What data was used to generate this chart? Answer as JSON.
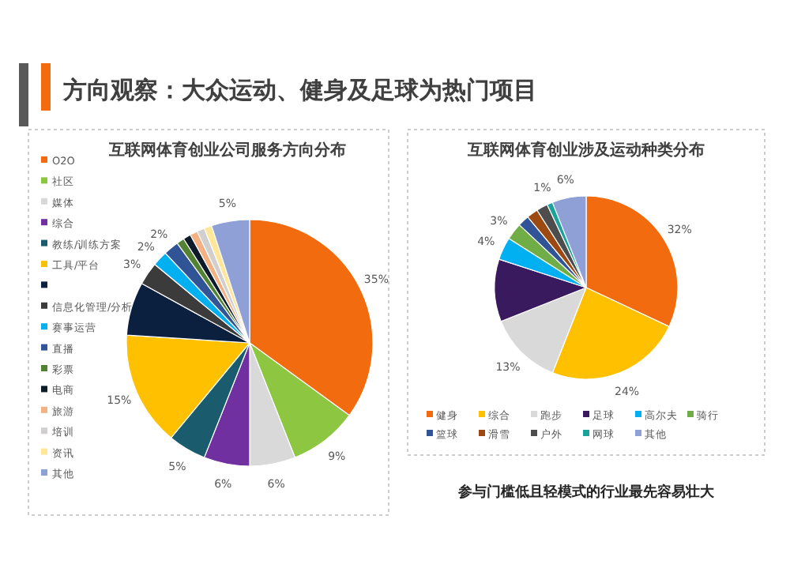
{
  "chart_data": [
    {
      "type": "pie",
      "title": "互联网体育创业公司服务方向分布",
      "annotations": [
        "方向观察：大众运动、健身及足球为热门项目"
      ],
      "legend": "left",
      "categories": [
        "O2O",
        "社区",
        "媒体",
        "综合",
        "教练/训练方案",
        "工具/平台",
        null,
        "信息化管理/分析",
        "赛事运营",
        "直播",
        "彩票",
        "电商",
        "旅游",
        "培训",
        "资讯",
        "其他"
      ],
      "values": [
        35,
        9,
        6,
        6,
        5,
        15,
        7,
        3,
        2,
        2,
        1,
        1,
        1,
        1,
        1,
        5
      ],
      "value_labels": [
        "35%",
        "9%",
        "6%",
        "6%",
        "5%",
        "15%",
        null,
        "3%",
        "2%",
        "2%",
        null,
        null,
        null,
        null,
        null,
        "5%"
      ],
      "colors": [
        "#f26b0f",
        "#8dc641",
        "#d9d9d9",
        "#7030a0",
        "#1a5c6e",
        "#ffc000",
        "#0b1f3f",
        "#3b3b3b",
        "#00b0f0",
        "#305496",
        "#548235",
        "#0d1b2a",
        "#f4b183",
        "#d0cece",
        "#ffe699",
        "#8ea0d6"
      ]
    },
    {
      "type": "pie",
      "title": "互联网体育创业涉及运动种类分布",
      "annotations": [
        "参与门槛低且轻模式的行业最先容易壮大"
      ],
      "legend": "bottom",
      "categories": [
        "健身",
        "综合",
        "跑步",
        "足球",
        "高尔夫",
        "骑行",
        "篮球",
        "滑雪",
        "户外",
        "网球",
        "其他"
      ],
      "values": [
        32,
        24,
        13,
        11,
        4,
        3,
        2,
        2,
        2,
        1,
        6
      ],
      "value_labels": [
        "32%",
        "24%",
        "13%",
        null,
        "4%",
        "3%",
        null,
        null,
        null,
        "1%",
        "6%"
      ],
      "colors": [
        "#f26b0f",
        "#ffc000",
        "#d9d9d9",
        "#3a1a5e",
        "#00b0f0",
        "#70ad47",
        "#305496",
        "#9c4a12",
        "#4d4d4d",
        "#1aa39a",
        "#8ea0d6"
      ]
    }
  ]
}
